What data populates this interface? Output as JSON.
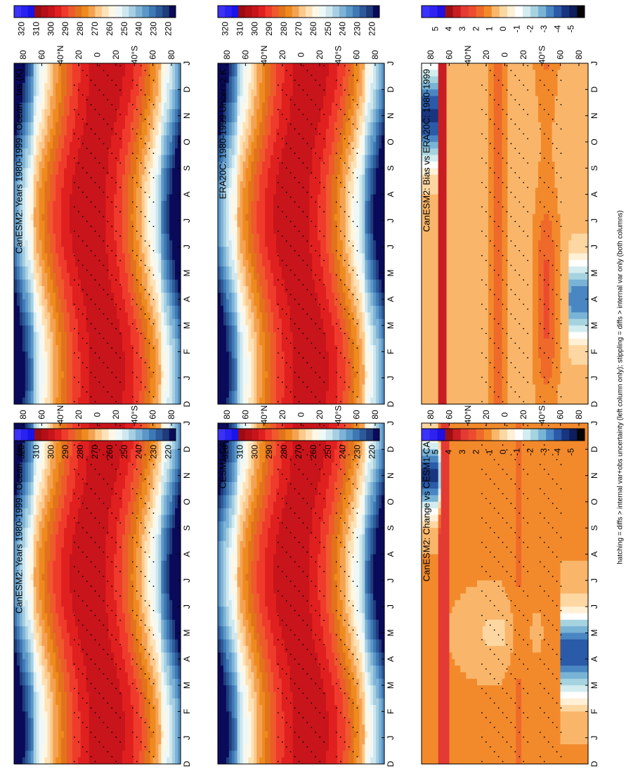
{
  "figure": {
    "footnote": "hatching = diffs > internal var+obs uncertainty (left column only); stippling = diffs > internal var only (both columns)"
  },
  "colors": {
    "abs_scale": [
      "#0a0a5a",
      "#1f3b7a",
      "#2c5a9a",
      "#3f79b4",
      "#5b97c8",
      "#7fb3d6",
      "#a6cfe2",
      "#cfe8ee",
      "#eef8f8",
      "#fff7e6",
      "#fde2b8",
      "#fcc98a",
      "#f4a252",
      "#ef8a1e",
      "#e2731c",
      "#ee5a2b",
      "#ef3b2c",
      "#e0201f",
      "#c8141b",
      "#b30f17",
      "#9a0b14",
      "#1a14e8",
      "#2a22f0",
      "#3b32f5"
    ],
    "diff_scale": [
      "#050505",
      "#0d1e5a",
      "#18357f",
      "#2a5aa8",
      "#4a86c2",
      "#79b4d6",
      "#a6d3e0",
      "#d2ecef",
      "#ffffff",
      "#fff0d6",
      "#fdd7a2",
      "#f9b66a",
      "#f28a2c",
      "#ef6a2a",
      "#ec4b2e",
      "#e33a33",
      "#c81d22",
      "#9b0f14",
      "#1e10e0",
      "#2e22f0",
      "#3a32ff"
    ]
  },
  "chart_data": [
    {
      "type": "heatmap",
      "panel": "top-left",
      "title": "CanESM2: Years 1980-1999 : Ocean : tas (K)",
      "x_ticks": [
        "D",
        "J",
        "F",
        "M",
        "A",
        "M",
        "J",
        "J",
        "A",
        "S",
        "O",
        "N",
        "D",
        "J"
      ],
      "y_ticks": [
        "80",
        "60",
        "40°N",
        "20",
        "0",
        "20",
        "40°S",
        "60",
        "80"
      ],
      "colorbar_ticks": [
        "320",
        "310",
        "300",
        "290",
        "280",
        "270",
        "260",
        "250",
        "240",
        "230",
        "220"
      ],
      "colorbar_range": [
        215,
        325
      ],
      "colorscale": "abs",
      "field": "abs"
    },
    {
      "type": "heatmap",
      "panel": "top-right",
      "title": "CanESM2: Years 1980-1999 : Ocean : tas (K)",
      "x_ticks": [
        "D",
        "J",
        "F",
        "M",
        "A",
        "M",
        "J",
        "J",
        "A",
        "S",
        "O",
        "N",
        "D",
        "J"
      ],
      "y_ticks": [
        "80",
        "60",
        "40°N",
        "20",
        "0",
        "20",
        "40°S",
        "60",
        "80"
      ],
      "colorbar_ticks": [
        "320",
        "310",
        "300",
        "290",
        "280",
        "270",
        "260",
        "250",
        "240",
        "230",
        "220"
      ],
      "colorbar_range": [
        215,
        325
      ],
      "colorscale": "abs",
      "field": "abs"
    },
    {
      "type": "heatmap",
      "panel": "middle-left",
      "title": "ERA20C: 1980-1999 Uncer=2 K",
      "x_ticks": [
        "D",
        "J",
        "F",
        "M",
        "A",
        "M",
        "J",
        "J",
        "A",
        "S",
        "O",
        "N",
        "D",
        "J"
      ],
      "y_ticks": [
        "80",
        "60",
        "40°N",
        "20",
        "0",
        "20",
        "40°S",
        "60",
        "80"
      ],
      "colorbar_ticks": [
        "320",
        "310",
        "300",
        "290",
        "280",
        "270",
        "260",
        "250",
        "240",
        "230",
        "220"
      ],
      "colorbar_range": [
        215,
        325
      ],
      "colorscale": "abs",
      "field": "abs"
    },
    {
      "type": "heatmap",
      "panel": "middle-right",
      "title": "CESM1-CAM5",
      "x_ticks": [
        "D",
        "J",
        "F",
        "M",
        "A",
        "M",
        "J",
        "J",
        "A",
        "S",
        "O",
        "N",
        "D",
        "J"
      ],
      "y_ticks": [
        "80",
        "60",
        "40°N",
        "20",
        "0",
        "20",
        "40°S",
        "60",
        "80"
      ],
      "colorbar_ticks": [
        "320",
        "310",
        "300",
        "290",
        "280",
        "270",
        "260",
        "250",
        "240",
        "230",
        "220"
      ],
      "colorbar_range": [
        215,
        325
      ],
      "colorscale": "abs",
      "field": "abs"
    },
    {
      "type": "heatmap",
      "panel": "bottom-left",
      "title": "CanESM2: Bias vs ERA20C: 1980-1999",
      "x_ticks": [
        "D",
        "J",
        "F",
        "M",
        "A",
        "M",
        "J",
        "J",
        "A",
        "S",
        "O",
        "N",
        "D",
        "J"
      ],
      "y_ticks": [
        "80",
        "60",
        "40°N",
        "20",
        "0",
        "20",
        "40°S",
        "60",
        "80"
      ],
      "colorbar_ticks": [
        "5",
        "4",
        "3",
        "2",
        "1",
        "0",
        "-1",
        "-2",
        "-3",
        "-4",
        "-5"
      ],
      "colorbar_range": [
        -6,
        6
      ],
      "colorscale": "diff",
      "field": "bias"
    },
    {
      "type": "heatmap",
      "panel": "bottom-right",
      "title": "CanESM2: Change vs CESM1-CAM5",
      "x_ticks": [
        "D",
        "J",
        "F",
        "M",
        "A",
        "M",
        "J",
        "J",
        "A",
        "S",
        "O",
        "N",
        "D",
        "J"
      ],
      "y_ticks": [
        "80",
        "60",
        "40°N",
        "20",
        "0",
        "20",
        "40°S",
        "60",
        "80"
      ],
      "colorbar_ticks": [
        "5",
        "4",
        "3",
        "2",
        "1",
        "0",
        "-1",
        "-2",
        "-3",
        "-4",
        "-5"
      ],
      "colorbar_range": [
        -6,
        6
      ],
      "colorscale": "diff",
      "field": "change"
    }
  ]
}
